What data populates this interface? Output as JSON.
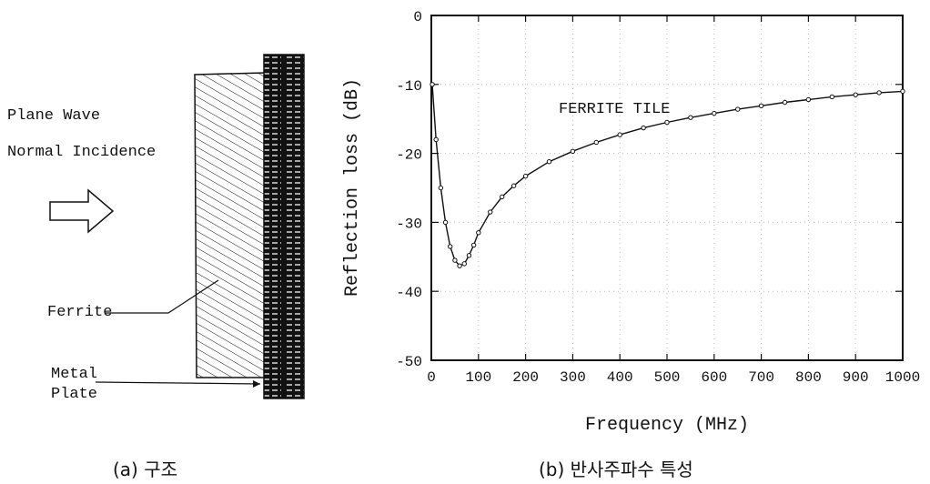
{
  "left_panel": {
    "wave_line1": "Plane Wave",
    "wave_line2": "Normal Incidence",
    "ferrite_label": "Ferrite",
    "metal_line1": "Metal",
    "metal_line2": "Plate",
    "caption": "(a) 구조"
  },
  "right_panel": {
    "caption": "(b) 반사주파수 특성"
  },
  "chart_data": {
    "type": "line",
    "title": "",
    "xlabel": "Frequency (MHz)",
    "ylabel": "Reflection loss (dB)",
    "xlim": [
      0,
      1000
    ],
    "ylim": [
      -50,
      0
    ],
    "xticks": [
      0,
      100,
      200,
      300,
      400,
      500,
      600,
      700,
      800,
      900,
      1000
    ],
    "yticks": [
      0,
      -10,
      -20,
      -30,
      -40,
      -50
    ],
    "grid": true,
    "annotation": "FERRITE TILE",
    "series": [
      {
        "x": [
          2,
          10,
          20,
          30,
          40,
          50,
          60,
          70,
          80,
          90,
          100,
          125,
          150,
          175,
          200,
          250,
          300,
          350,
          400,
          450,
          500,
          550,
          600,
          650,
          700,
          750,
          800,
          850,
          900,
          950,
          1000
        ],
        "y": [
          -10,
          -18,
          -25,
          -30,
          -33.5,
          -35.5,
          -36.3,
          -36,
          -34.8,
          -33.3,
          -31.5,
          -28.5,
          -26.3,
          -24.7,
          -23.3,
          -21.2,
          -19.7,
          -18.4,
          -17.3,
          -16.3,
          -15.5,
          -14.8,
          -14.2,
          -13.6,
          -13.1,
          -12.6,
          -12.2,
          -11.8,
          -11.5,
          -11.2,
          -11
        ]
      }
    ]
  }
}
